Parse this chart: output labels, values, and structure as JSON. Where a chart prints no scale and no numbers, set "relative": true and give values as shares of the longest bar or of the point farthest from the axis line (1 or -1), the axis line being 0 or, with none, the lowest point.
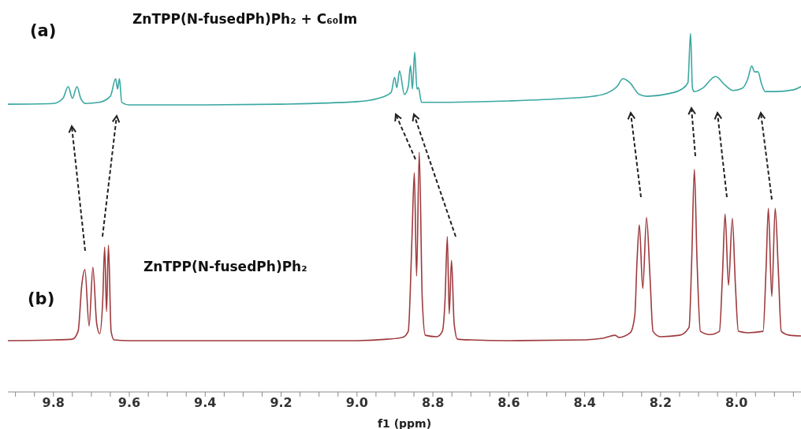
{
  "chart_data": {
    "type": "line",
    "title": "ZnTPP(N-fusedPh)Ph₂ + C₆₀Im",
    "annotations": [
      "(a)",
      "(b)",
      "ZnTPP(N-fusedPh)Ph₂"
    ],
    "relative": true,
    "xlabel": "f1 (ppm)",
    "xlim": [
      9.92,
      7.83
    ],
    "xticks": [
      {
        "value": 9.9,
        "label": null
      },
      {
        "value": 9.85,
        "label": null
      },
      9.8,
      {
        "value": 9.75,
        "label": null
      },
      {
        "value": 9.7,
        "label": null
      },
      {
        "value": 9.65,
        "label": null
      },
      9.6,
      {
        "value": 9.55,
        "label": null
      },
      {
        "value": 9.5,
        "label": null
      },
      {
        "value": 9.45,
        "label": null
      },
      9.4,
      {
        "value": 9.35,
        "label": null
      },
      {
        "value": 9.3,
        "label": null
      },
      {
        "value": 9.25,
        "label": null
      },
      9.2,
      {
        "value": 9.15,
        "label": null
      },
      {
        "value": 9.1,
        "label": null
      },
      {
        "value": 9.05,
        "label": null
      },
      {
        "value": 9.0,
        "label": "9.0"
      },
      {
        "value": 8.95,
        "label": null
      },
      {
        "value": 8.9,
        "label": null
      },
      {
        "value": 8.85,
        "label": null
      },
      8.8,
      {
        "value": 8.75,
        "label": null
      },
      {
        "value": 8.7,
        "label": null
      },
      {
        "value": 8.65,
        "label": null
      },
      8.6,
      {
        "value": 8.55,
        "label": null
      },
      {
        "value": 8.5,
        "label": null
      },
      {
        "value": 8.45,
        "label": null
      },
      8.4,
      {
        "value": 8.35,
        "label": null
      },
      {
        "value": 8.3,
        "label": null
      },
      {
        "value": 8.25,
        "label": null
      },
      8.2,
      {
        "value": 8.15,
        "label": null
      },
      {
        "value": 8.1,
        "label": null
      },
      {
        "value": 8.05,
        "label": null
      },
      {
        "value": 8.0,
        "label": "8.0"
      },
      {
        "value": 7.95,
        "label": null
      },
      {
        "value": 7.9,
        "label": null
      },
      {
        "value": 7.85,
        "label": null
      }
    ],
    "series": [
      {
        "color": "#3aa7a2",
        "x": [
          9.92,
          9.8,
          9.775,
          9.761,
          9.75,
          9.738,
          9.728,
          9.715,
          9.68,
          9.65,
          9.636,
          9.631,
          9.626,
          9.62,
          9.6,
          9.4,
          9.2,
          9.0,
          8.944,
          8.91,
          8.901,
          8.895,
          8.888,
          8.875,
          8.865,
          8.859,
          8.854,
          8.848,
          8.842,
          8.838,
          8.83,
          8.8,
          8.6,
          8.45,
          8.378,
          8.341,
          8.315,
          8.299,
          8.281,
          8.256,
          8.235,
          8.18,
          8.144,
          8.128,
          8.121,
          8.116,
          8.111,
          8.09,
          8.055,
          8.03,
          8.009,
          7.985,
          7.97,
          7.96,
          7.952,
          7.943,
          7.935,
          7.924,
          7.9,
          7.85,
          7.83
        ],
        "values": [
          0.802,
          0.804,
          0.818,
          0.851,
          0.818,
          0.851,
          0.818,
          0.804,
          0.807,
          0.824,
          0.873,
          0.844,
          0.873,
          0.807,
          0.8,
          0.8,
          0.802,
          0.809,
          0.818,
          0.835,
          0.877,
          0.848,
          0.895,
          0.829,
          0.851,
          0.91,
          0.844,
          0.947,
          0.844,
          0.848,
          0.807,
          0.807,
          0.811,
          0.818,
          0.824,
          0.833,
          0.851,
          0.873,
          0.862,
          0.829,
          0.824,
          0.831,
          0.844,
          0.862,
          1,
          0.846,
          0.837,
          0.846,
          0.879,
          0.855,
          0.84,
          0.846,
          0.873,
          0.908,
          0.892,
          0.892,
          0.862,
          0.837,
          0.837,
          0.842,
          0.851
        ]
      },
      {
        "color": "#9e3a3e",
        "x": [
          9.92,
          9.8,
          9.75,
          9.735,
          9.725,
          9.717,
          9.706,
          9.696,
          9.686,
          9.678,
          9.67,
          9.665,
          9.66,
          9.655,
          9.648,
          9.64,
          9.6,
          9.4,
          9.2,
          9.0,
          8.92,
          8.88,
          8.865,
          8.855,
          8.849,
          8.843,
          8.836,
          8.828,
          8.82,
          8.79,
          8.775,
          8.768,
          8.762,
          8.757,
          8.751,
          8.744,
          8.735,
          8.7,
          8.6,
          8.4,
          8.35,
          8.32,
          8.31,
          8.28,
          8.268,
          8.262,
          8.256,
          8.247,
          8.237,
          8.228,
          8.22,
          8.2,
          8.15,
          8.125,
          8.118,
          8.111,
          8.104,
          8.095,
          8.07,
          8.045,
          8.037,
          8.03,
          8.021,
          8.011,
          8.003,
          7.995,
          7.97,
          7.93,
          7.922,
          7.916,
          7.907,
          7.898,
          7.89,
          7.882,
          7.86,
          7.83
        ],
        "values": [
          0.143,
          0.145,
          0.147,
          0.169,
          0.301,
          0.341,
          0.184,
          0.347,
          0.191,
          0.162,
          0.257,
          0.404,
          0.224,
          0.409,
          0.169,
          0.145,
          0.143,
          0.143,
          0.143,
          0.143,
          0.147,
          0.152,
          0.169,
          0.433,
          0.611,
          0.323,
          0.668,
          0.257,
          0.158,
          0.154,
          0.169,
          0.257,
          0.433,
          0.218,
          0.367,
          0.191,
          0.147,
          0.145,
          0.143,
          0.145,
          0.15,
          0.158,
          0.152,
          0.165,
          0.213,
          0.367,
          0.466,
          0.288,
          0.486,
          0.323,
          0.169,
          0.154,
          0.158,
          0.18,
          0.367,
          0.62,
          0.367,
          0.169,
          0.16,
          0.169,
          0.323,
          0.496,
          0.297,
          0.484,
          0.301,
          0.169,
          0.165,
          0.169,
          0.345,
          0.512,
          0.266,
          0.512,
          0.345,
          0.169,
          0.158,
          0.156
        ]
      }
    ]
  }
}
